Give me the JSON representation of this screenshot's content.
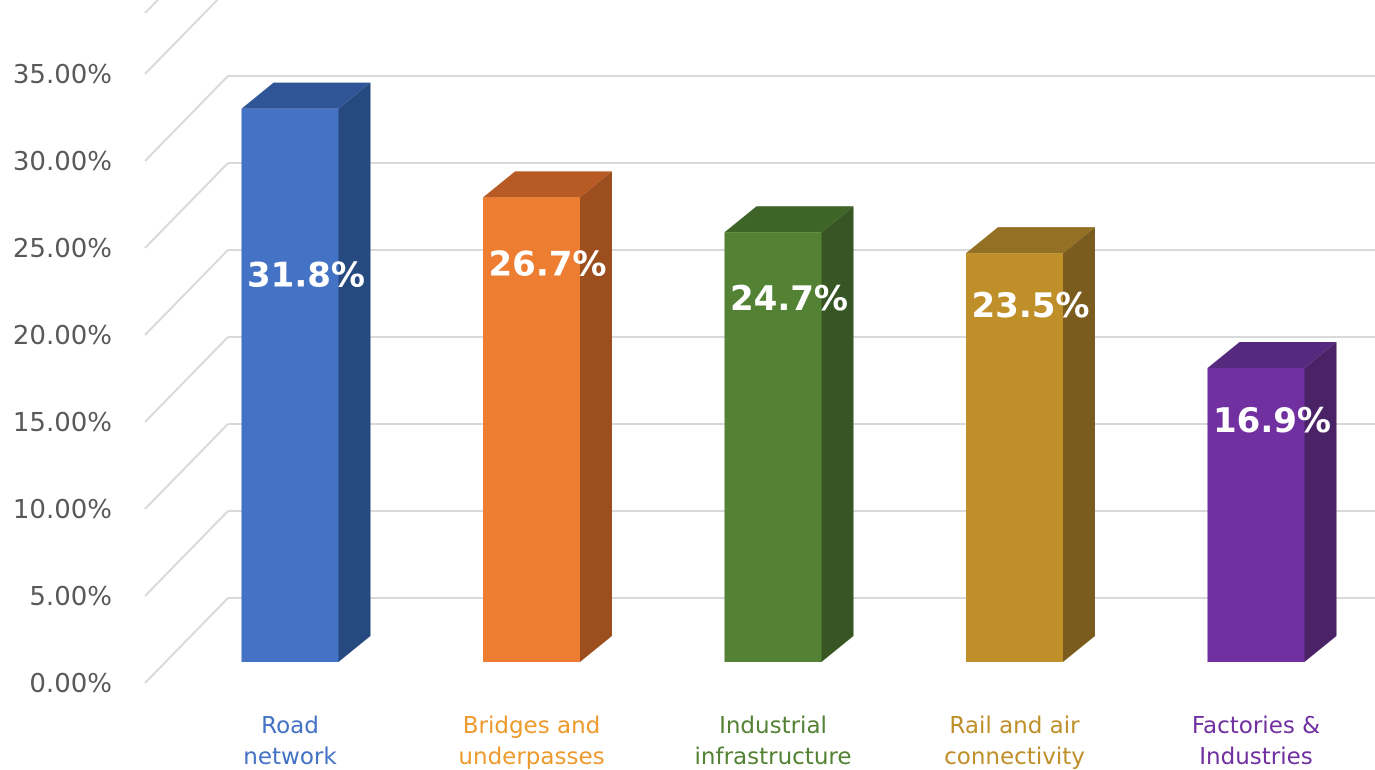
{
  "chart_data": {
    "type": "bar",
    "style": "3d-column",
    "categories": [
      [
        "Road",
        "network"
      ],
      [
        "Bridges and",
        "underpasses"
      ],
      [
        "Industrial",
        "infrastructure"
      ],
      [
        "Rail and air",
        "connectivity"
      ],
      [
        "Factories &",
        "Industries"
      ]
    ],
    "values": [
      31.8,
      26.7,
      24.7,
      23.5,
      16.9
    ],
    "data_labels": [
      "31.8%",
      "26.7%",
      "24.7%",
      "23.5%",
      "16.9%"
    ],
    "y_ticks": [
      "0.00%",
      "5.00%",
      "10.00%",
      "15.00%",
      "20.00%",
      "25.00%",
      "30.00%",
      "35.00%"
    ],
    "y_tick_values": [
      0,
      5,
      10,
      15,
      20,
      25,
      30,
      35
    ],
    "ylim": [
      0,
      38.5
    ],
    "grid": true,
    "legend": "none",
    "colors": {
      "front": [
        "#4472C4",
        "#ED7D31",
        "#548235",
        "#BF8F2A",
        "#7030A0"
      ],
      "side": [
        "#264A80",
        "#9C4E1E",
        "#375623",
        "#7A5C1F",
        "#4A2366"
      ],
      "top": [
        "#2F5597",
        "#B85A24",
        "#3E6427",
        "#947025",
        "#552A7E"
      ],
      "labels": [
        "#4472C4",
        "#ED9A2E",
        "#548235",
        "#BF8F2A",
        "#7030A0"
      ],
      "grid": "#d9d9d9",
      "tick_text": "#595959"
    }
  }
}
